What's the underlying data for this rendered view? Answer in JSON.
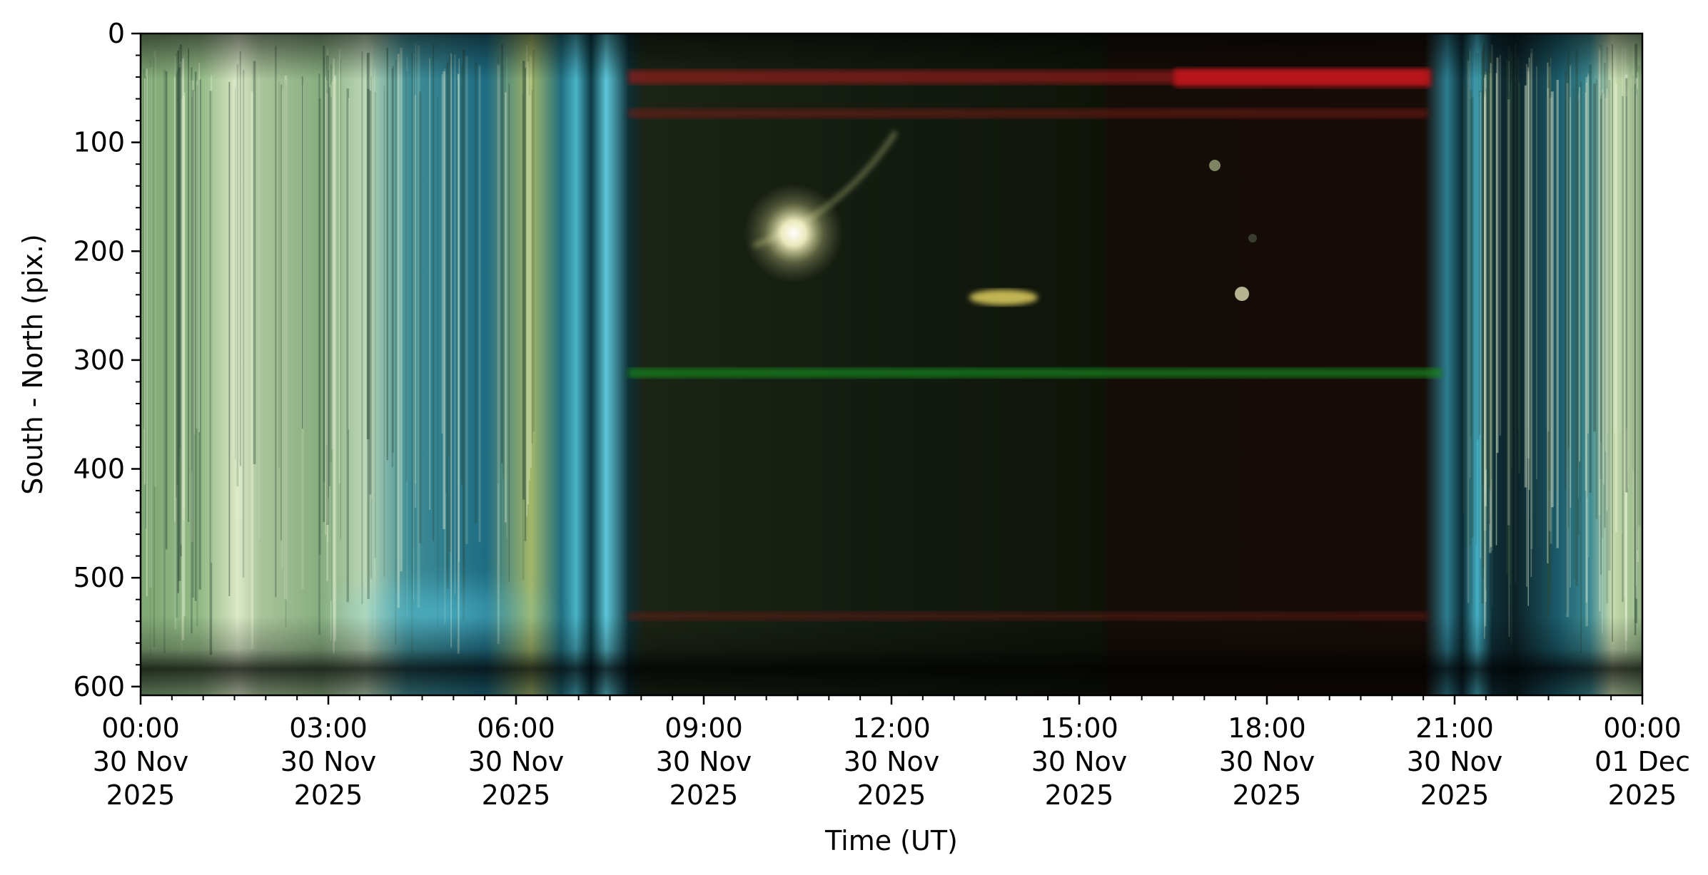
{
  "chart_data": {
    "type": "heatmap",
    "title": "",
    "xlabel": "Time (UT)",
    "ylabel": "South - North (pix.)",
    "x_range": [
      "2025-11-30T00:00",
      "2025-12-01T00:00"
    ],
    "ylim": [
      608,
      0
    ],
    "y_ticks": [
      0,
      100,
      200,
      300,
      400,
      500,
      600
    ],
    "y_minor_step": 20,
    "x_ticks": [
      {
        "time": "2025-11-30T00:00",
        "line1": "00:00",
        "line2": "30 Nov",
        "line3": "2025"
      },
      {
        "time": "2025-11-30T03:00",
        "line1": "03:00",
        "line2": "30 Nov",
        "line3": "2025"
      },
      {
        "time": "2025-11-30T06:00",
        "line1": "06:00",
        "line2": "30 Nov",
        "line3": "2025"
      },
      {
        "time": "2025-11-30T09:00",
        "line1": "09:00",
        "line2": "30 Nov",
        "line3": "2025"
      },
      {
        "time": "2025-11-30T12:00",
        "line1": "12:00",
        "line2": "30 Nov",
        "line3": "2025"
      },
      {
        "time": "2025-11-30T15:00",
        "line1": "15:00",
        "line2": "30 Nov",
        "line3": "2025"
      },
      {
        "time": "2025-11-30T18:00",
        "line1": "18:00",
        "line2": "30 Nov",
        "line3": "2025"
      },
      {
        "time": "2025-11-30T21:00",
        "line1": "21:00",
        "line2": "30 Nov",
        "line3": "2025"
      },
      {
        "time": "2025-12-01T00:00",
        "line1": "00:00",
        "line2": "01 Dec",
        "line3": "2025"
      }
    ],
    "x_minor_step_minutes": 30,
    "grid": false,
    "colors": {
      "daylight_sky": "#9fc79a",
      "twilight_sky": "#2f93a8",
      "night_sky": "#10160e",
      "moon": "#f2f2c0",
      "red_band": "#c8141c",
      "green_band": "#138a1c"
    }
  }
}
